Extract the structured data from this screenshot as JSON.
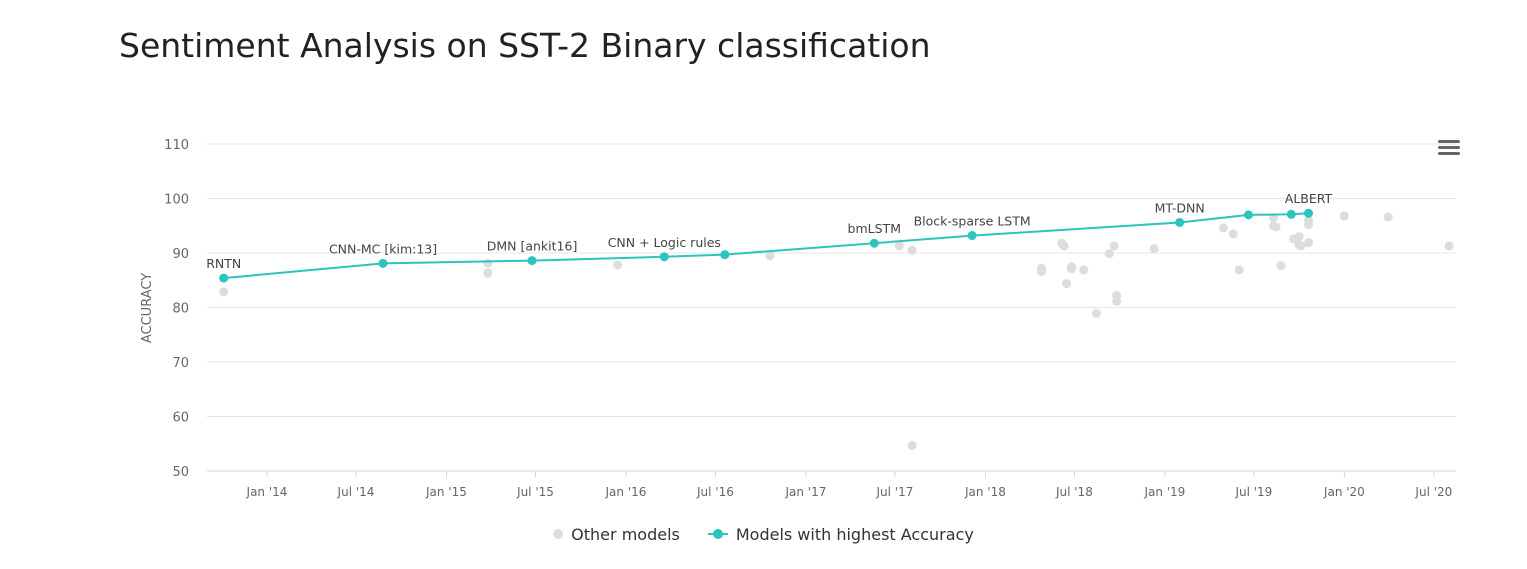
{
  "chart_data": {
    "type": "scatter",
    "title": "Sentiment Analysis on SST-2 Binary classification",
    "ylabel": "ACCURACY",
    "xlabel": "",
    "ylim": [
      50,
      110
    ],
    "yticks": [
      50,
      60,
      70,
      80,
      90,
      100,
      110
    ],
    "xlim": [
      "2013-09-01",
      "2020-08-15"
    ],
    "xticks": [
      {
        "date": "2014-01-01",
        "label": "Jan '14"
      },
      {
        "date": "2014-07-01",
        "label": "Jul '14"
      },
      {
        "date": "2015-01-01",
        "label": "Jan '15"
      },
      {
        "date": "2015-07-01",
        "label": "Jul '15"
      },
      {
        "date": "2016-01-01",
        "label": "Jan '16"
      },
      {
        "date": "2016-07-01",
        "label": "Jul '16"
      },
      {
        "date": "2017-01-01",
        "label": "Jan '17"
      },
      {
        "date": "2017-07-01",
        "label": "Jul '17"
      },
      {
        "date": "2018-01-01",
        "label": "Jan '18"
      },
      {
        "date": "2018-07-01",
        "label": "Jul '18"
      },
      {
        "date": "2019-01-01",
        "label": "Jan '19"
      },
      {
        "date": "2019-07-01",
        "label": "Jul '19"
      },
      {
        "date": "2020-01-01",
        "label": "Jan '20"
      },
      {
        "date": "2020-07-01",
        "label": "Jul '20"
      }
    ],
    "grid": true,
    "legend_position": "bottom-center",
    "series": [
      {
        "name": "Other models",
        "color": "#dddddd",
        "points": [
          {
            "x": "2013-10-05",
            "y": 82.9
          },
          {
            "x": "2015-03-26",
            "y": 88.1
          },
          {
            "x": "2015-03-26",
            "y": 86.3
          },
          {
            "x": "2015-12-15",
            "y": 87.8
          },
          {
            "x": "2016-10-20",
            "y": 89.5
          },
          {
            "x": "2017-07-10",
            "y": 91.3
          },
          {
            "x": "2017-08-05",
            "y": 90.5
          },
          {
            "x": "2017-08-05",
            "y": 54.7
          },
          {
            "x": "2018-04-25",
            "y": 87.2
          },
          {
            "x": "2018-04-25",
            "y": 86.6
          },
          {
            "x": "2018-06-05",
            "y": 91.8
          },
          {
            "x": "2018-06-10",
            "y": 91.3
          },
          {
            "x": "2018-06-15",
            "y": 84.4
          },
          {
            "x": "2018-06-25",
            "y": 87.5
          },
          {
            "x": "2018-06-25",
            "y": 87.1
          },
          {
            "x": "2018-07-20",
            "y": 86.9
          },
          {
            "x": "2018-08-15",
            "y": 78.9
          },
          {
            "x": "2018-09-10",
            "y": 89.9
          },
          {
            "x": "2018-09-20",
            "y": 91.3
          },
          {
            "x": "2018-09-25",
            "y": 82.2
          },
          {
            "x": "2018-09-25",
            "y": 81.1
          },
          {
            "x": "2018-12-10",
            "y": 90.8
          },
          {
            "x": "2019-04-30",
            "y": 94.6
          },
          {
            "x": "2019-05-20",
            "y": 93.5
          },
          {
            "x": "2019-06-01",
            "y": 86.9
          },
          {
            "x": "2019-08-10",
            "y": 96.5
          },
          {
            "x": "2019-08-10",
            "y": 95.0
          },
          {
            "x": "2019-08-15",
            "y": 94.8
          },
          {
            "x": "2019-08-25",
            "y": 87.7
          },
          {
            "x": "2019-09-20",
            "y": 92.6
          },
          {
            "x": "2019-10-01",
            "y": 93.0
          },
          {
            "x": "2019-10-01",
            "y": 91.5
          },
          {
            "x": "2019-10-05",
            "y": 91.3
          },
          {
            "x": "2019-10-20",
            "y": 96.0
          },
          {
            "x": "2019-10-20",
            "y": 95.2
          },
          {
            "x": "2019-10-20",
            "y": 91.9
          },
          {
            "x": "2020-01-01",
            "y": 96.8
          },
          {
            "x": "2020-03-30",
            "y": 96.6
          },
          {
            "x": "2020-08-01",
            "y": 91.3
          }
        ]
      },
      {
        "name": "Models with highest Accuracy",
        "color": "#2ec4be",
        "points": [
          {
            "x": "2013-10-05",
            "y": 85.4,
            "label": "RNTN"
          },
          {
            "x": "2014-08-25",
            "y": 88.1,
            "label": "CNN-MC [kim:13]"
          },
          {
            "x": "2015-06-24",
            "y": 88.6,
            "label": "DMN [ankit16]"
          },
          {
            "x": "2016-03-19",
            "y": 89.3,
            "label": "CNN + Logic rules"
          },
          {
            "x": "2016-07-20",
            "y": 89.7,
            "label": ""
          },
          {
            "x": "2017-05-20",
            "y": 91.8,
            "label": "bmLSTM"
          },
          {
            "x": "2017-12-05",
            "y": 93.2,
            "label": "Block-sparse LSTM"
          },
          {
            "x": "2019-01-31",
            "y": 95.6,
            "label": "MT-DNN"
          },
          {
            "x": "2019-06-20",
            "y": 97.0,
            "label": ""
          },
          {
            "x": "2019-09-15",
            "y": 97.1,
            "label": ""
          },
          {
            "x": "2019-10-20",
            "y": 97.3,
            "label": "ALBERT"
          }
        ]
      }
    ]
  },
  "colors": {
    "accent": "#2ec4be",
    "other": "#dddddd",
    "grid": "#e6e6e6",
    "axis": "#ccd6eb",
    "tick_text": "#666666",
    "label_text": "#444444"
  },
  "menu": {
    "icon": "hamburger-menu-icon"
  }
}
